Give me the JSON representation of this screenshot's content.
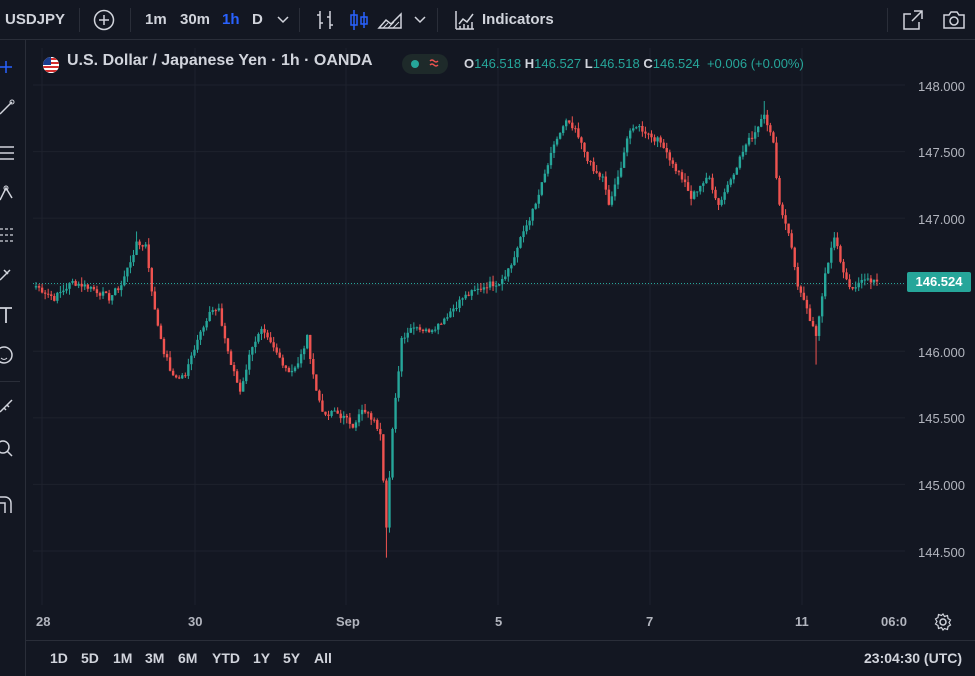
{
  "toolbar": {
    "symbol": "USDJPY",
    "intervals": [
      "1m",
      "30m",
      "1h",
      "D"
    ],
    "active_interval": "1h",
    "indicators_label": "Indicators"
  },
  "legend": {
    "title": "U.S. Dollar / Japanese Yen · 1h · OANDA",
    "o_key": "O",
    "o_val": "146.518",
    "h_key": "H",
    "h_val": "146.527",
    "l_key": "L",
    "l_val": "146.518",
    "c_key": "C",
    "c_val": "146.524",
    "change": "+0.006 (+0.00%)"
  },
  "price_axis": [
    "148.000",
    "147.500",
    "147.000",
    "146.500",
    "146.000",
    "145.500",
    "145.000",
    "144.500"
  ],
  "last_price": "146.524",
  "time_axis": [
    "28",
    "30",
    "Sep",
    "5",
    "7",
    "11",
    "06:0"
  ],
  "ranges": [
    "1D",
    "5D",
    "1M",
    "3M",
    "6M",
    "YTD",
    "1Y",
    "5Y",
    "All"
  ],
  "clock": "23:04:30 (UTC)",
  "colors": {
    "up": "#26a69a",
    "down": "#ef5350",
    "accent": "#2962ff",
    "bg": "#131722"
  },
  "chart_data": {
    "type": "candlestick",
    "symbol": "USDJPY",
    "interval": "1h",
    "ylim": [
      144.3,
      148.2
    ],
    "x_ticks": [
      "28",
      "30",
      "Sep",
      "5",
      "7",
      "11",
      "06:0"
    ],
    "anchors": [
      [
        0,
        146.49
      ],
      [
        6,
        146.4
      ],
      [
        12,
        146.52
      ],
      [
        18,
        146.48
      ],
      [
        24,
        146.4
      ],
      [
        28,
        146.5
      ],
      [
        33,
        146.8
      ],
      [
        36,
        146.8
      ],
      [
        39,
        146.3
      ],
      [
        42,
        146.0
      ],
      [
        45,
        145.8
      ],
      [
        49,
        145.82
      ],
      [
        53,
        146.1
      ],
      [
        57,
        146.3
      ],
      [
        60,
        146.3
      ],
      [
        64,
        145.9
      ],
      [
        67,
        145.7
      ],
      [
        71,
        146.05
      ],
      [
        74,
        146.15
      ],
      [
        77,
        146.05
      ],
      [
        80,
        145.95
      ],
      [
        83,
        145.85
      ],
      [
        86,
        145.9
      ],
      [
        89,
        146.1
      ],
      [
        92,
        145.7
      ],
      [
        95,
        145.5
      ],
      [
        98,
        145.55
      ],
      [
        101,
        145.5
      ],
      [
        104,
        145.45
      ],
      [
        107,
        145.55
      ],
      [
        110,
        145.5
      ],
      [
        113,
        145.4
      ],
      [
        115,
        144.7
      ],
      [
        117,
        145.4
      ],
      [
        120,
        146.1
      ],
      [
        124,
        146.2
      ],
      [
        128,
        146.15
      ],
      [
        132,
        146.2
      ],
      [
        136,
        146.3
      ],
      [
        140,
        146.4
      ],
      [
        144,
        146.45
      ],
      [
        148,
        146.5
      ],
      [
        152,
        146.52
      ],
      [
        156,
        146.65
      ],
      [
        160,
        146.9
      ],
      [
        164,
        147.1
      ],
      [
        168,
        147.4
      ],
      [
        171,
        147.6
      ],
      [
        174,
        147.72
      ],
      [
        177,
        147.65
      ],
      [
        180,
        147.5
      ],
      [
        183,
        147.35
      ],
      [
        186,
        147.3
      ],
      [
        188,
        147.1
      ],
      [
        191,
        147.3
      ],
      [
        194,
        147.6
      ],
      [
        197,
        147.7
      ],
      [
        200,
        147.65
      ],
      [
        203,
        147.6
      ],
      [
        206,
        147.55
      ],
      [
        209,
        147.4
      ],
      [
        212,
        147.3
      ],
      [
        215,
        147.15
      ],
      [
        218,
        147.25
      ],
      [
        221,
        147.3
      ],
      [
        224,
        147.1
      ],
      [
        227,
        147.25
      ],
      [
        230,
        147.4
      ],
      [
        233,
        147.55
      ],
      [
        236,
        147.65
      ],
      [
        239,
        147.8
      ],
      [
        242,
        147.55
      ],
      [
        244,
        147.1
      ],
      [
        247,
        146.9
      ],
      [
        250,
        146.5
      ],
      [
        253,
        146.3
      ],
      [
        256,
        146.1
      ],
      [
        259,
        146.6
      ],
      [
        262,
        146.85
      ],
      [
        265,
        146.6
      ],
      [
        268,
        146.45
      ],
      [
        272,
        146.55
      ],
      [
        276,
        146.52
      ]
    ],
    "last": 146.524
  }
}
